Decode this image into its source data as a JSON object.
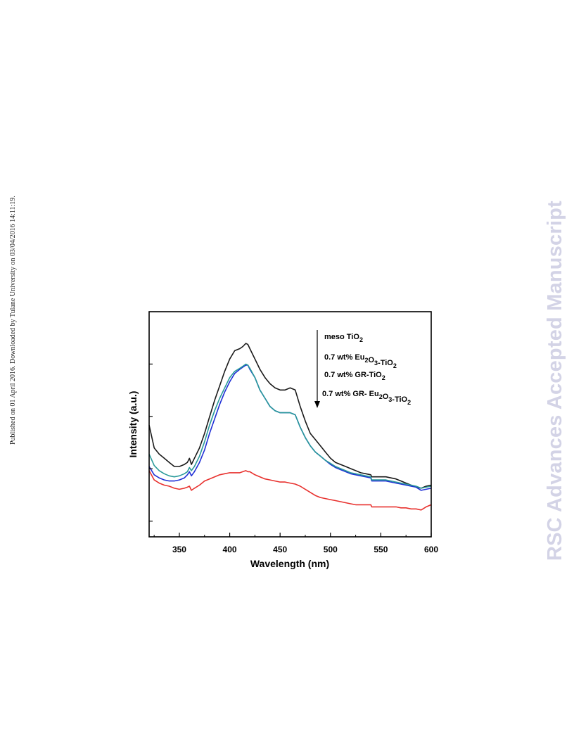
{
  "side_note": "Published on 01 April 2016. Downloaded by Tulane University on 03/04/2016 14:11:19.",
  "watermark": "RSC Advances Accepted Manuscript",
  "chart_data": {
    "type": "line",
    "xlabel": "Wavelength (nm)",
    "ylabel": "Intensity (a.u.)",
    "xlim": [
      320,
      600
    ],
    "ylim": [
      0,
      1
    ],
    "x_ticks": [
      350,
      400,
      450,
      500,
      550,
      600
    ],
    "y_ticks_labeled": false,
    "grid": false,
    "legend_position": "top-right",
    "legend_arrow": "downward",
    "series": [
      {
        "name": "meso TiO2",
        "legend": {
          "parts": [
            {
              "t": "meso TiO"
            },
            {
              "t": "2",
              "sub": true
            }
          ]
        },
        "color": "#1a1a1a",
        "x": [
          320,
          325,
          330,
          335,
          340,
          345,
          350,
          355,
          358,
          360,
          362,
          365,
          370,
          375,
          380,
          385,
          390,
          395,
          400,
          405,
          410,
          413,
          416,
          418,
          420,
          425,
          430,
          435,
          440,
          445,
          450,
          455,
          460,
          465,
          470,
          475,
          480,
          485,
          490,
          495,
          500,
          505,
          510,
          515,
          520,
          525,
          530,
          535,
          540,
          541,
          545,
          550,
          555,
          560,
          565,
          570,
          575,
          580,
          585,
          590,
          595,
          600
        ],
        "y": [
          0.54,
          0.43,
          0.4,
          0.38,
          0.36,
          0.34,
          0.34,
          0.35,
          0.36,
          0.38,
          0.35,
          0.38,
          0.43,
          0.5,
          0.58,
          0.66,
          0.73,
          0.8,
          0.86,
          0.9,
          0.91,
          0.92,
          0.935,
          0.93,
          0.91,
          0.86,
          0.81,
          0.77,
          0.74,
          0.72,
          0.71,
          0.71,
          0.72,
          0.71,
          0.63,
          0.56,
          0.5,
          0.47,
          0.44,
          0.41,
          0.38,
          0.36,
          0.35,
          0.34,
          0.33,
          0.32,
          0.31,
          0.305,
          0.3,
          0.29,
          0.29,
          0.29,
          0.29,
          0.285,
          0.28,
          0.27,
          0.26,
          0.25,
          0.24,
          0.235,
          0.245,
          0.25
        ]
      },
      {
        "name": "0.7 wt% Eu2O3-TiO2",
        "legend": {
          "parts": [
            {
              "t": "0.7 wt% Eu"
            },
            {
              "t": "2",
              "sub": true
            },
            {
              "t": "O"
            },
            {
              "t": "3",
              "sub": true
            },
            {
              "t": "-TiO"
            },
            {
              "t": "2",
              "sub": true
            }
          ]
        },
        "color": "#e8312e",
        "x": [
          320,
          325,
          330,
          335,
          340,
          345,
          350,
          355,
          358,
          360,
          362,
          365,
          370,
          375,
          380,
          385,
          390,
          395,
          400,
          405,
          410,
          413,
          416,
          418,
          420,
          425,
          430,
          435,
          440,
          445,
          450,
          455,
          460,
          465,
          470,
          475,
          480,
          485,
          490,
          495,
          500,
          505,
          510,
          515,
          520,
          525,
          530,
          535,
          540,
          541,
          545,
          550,
          555,
          560,
          565,
          570,
          575,
          580,
          585,
          590,
          595,
          600
        ],
        "y": [
          0.32,
          0.275,
          0.26,
          0.25,
          0.245,
          0.235,
          0.23,
          0.235,
          0.24,
          0.245,
          0.225,
          0.235,
          0.25,
          0.27,
          0.28,
          0.29,
          0.3,
          0.305,
          0.31,
          0.31,
          0.31,
          0.315,
          0.32,
          0.315,
          0.315,
          0.3,
          0.29,
          0.28,
          0.275,
          0.27,
          0.265,
          0.265,
          0.26,
          0.255,
          0.245,
          0.23,
          0.215,
          0.2,
          0.19,
          0.185,
          0.18,
          0.175,
          0.17,
          0.165,
          0.16,
          0.155,
          0.155,
          0.155,
          0.155,
          0.145,
          0.145,
          0.145,
          0.145,
          0.145,
          0.145,
          0.14,
          0.14,
          0.135,
          0.135,
          0.13,
          0.145,
          0.155
        ]
      },
      {
        "name": "0.7 wt% GR-TiO2",
        "legend": {
          "parts": [
            {
              "t": "0.7 wt% GR-TiO"
            },
            {
              "t": "2",
              "sub": true
            }
          ]
        },
        "color": "#1f2fd6",
        "x": [
          320,
          325,
          330,
          335,
          340,
          345,
          350,
          355,
          358,
          360,
          362,
          365,
          370,
          375,
          380,
          385,
          390,
          395,
          400,
          405,
          410,
          413,
          416,
          418,
          420,
          425,
          430,
          435,
          440,
          445,
          450,
          455,
          460,
          465,
          470,
          475,
          480,
          485,
          490,
          495,
          500,
          505,
          510,
          515,
          520,
          525,
          530,
          535,
          540,
          541,
          545,
          550,
          555,
          560,
          565,
          570,
          575,
          580,
          585,
          590,
          595,
          600
        ],
        "y": [
          0.34,
          0.3,
          0.285,
          0.275,
          0.27,
          0.27,
          0.275,
          0.285,
          0.3,
          0.315,
          0.295,
          0.315,
          0.36,
          0.42,
          0.5,
          0.57,
          0.64,
          0.7,
          0.75,
          0.79,
          0.81,
          0.82,
          0.83,
          0.83,
          0.81,
          0.77,
          0.71,
          0.67,
          0.63,
          0.61,
          0.6,
          0.6,
          0.6,
          0.59,
          0.53,
          0.48,
          0.44,
          0.41,
          0.39,
          0.37,
          0.35,
          0.335,
          0.325,
          0.315,
          0.305,
          0.3,
          0.295,
          0.29,
          0.285,
          0.27,
          0.27,
          0.27,
          0.27,
          0.265,
          0.26,
          0.255,
          0.25,
          0.245,
          0.24,
          0.225,
          0.23,
          0.235
        ]
      },
      {
        "name": "0.7 wt% GR- Eu2O3-TiO2",
        "legend": {
          "parts": [
            {
              "t": "0.7 wt% GR- Eu"
            },
            {
              "t": "2",
              "sub": true
            },
            {
              "t": "O"
            },
            {
              "t": "3",
              "sub": true
            },
            {
              "t": "-TiO"
            },
            {
              "t": "2",
              "sub": true
            }
          ]
        },
        "color": "#2a9a9a",
        "x": [
          320,
          325,
          330,
          335,
          340,
          345,
          350,
          355,
          358,
          360,
          362,
          365,
          370,
          375,
          380,
          385,
          390,
          395,
          400,
          405,
          410,
          413,
          416,
          418,
          420,
          425,
          430,
          435,
          440,
          445,
          450,
          455,
          460,
          465,
          470,
          475,
          480,
          485,
          490,
          495,
          500,
          505,
          510,
          515,
          520,
          525,
          530,
          535,
          540,
          541,
          545,
          550,
          555,
          560,
          565,
          570,
          575,
          580,
          585,
          590,
          595,
          600
        ],
        "y": [
          0.4,
          0.345,
          0.32,
          0.305,
          0.295,
          0.29,
          0.295,
          0.305,
          0.315,
          0.335,
          0.32,
          0.34,
          0.39,
          0.46,
          0.54,
          0.61,
          0.67,
          0.72,
          0.77,
          0.8,
          0.815,
          0.825,
          0.835,
          0.83,
          0.815,
          0.77,
          0.71,
          0.67,
          0.63,
          0.61,
          0.6,
          0.6,
          0.6,
          0.59,
          0.53,
          0.48,
          0.44,
          0.41,
          0.39,
          0.37,
          0.355,
          0.34,
          0.33,
          0.32,
          0.31,
          0.305,
          0.3,
          0.295,
          0.29,
          0.275,
          0.275,
          0.275,
          0.275,
          0.27,
          0.265,
          0.26,
          0.255,
          0.25,
          0.245,
          0.235,
          0.24,
          0.245
        ]
      }
    ]
  }
}
